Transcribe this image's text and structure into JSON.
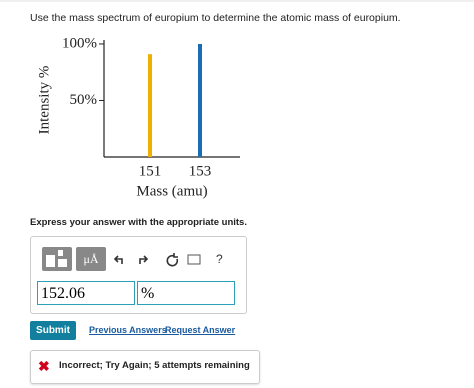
{
  "question": "Use the mass spectrum of europium to determine the atomic mass of europium.",
  "chart_data": {
    "type": "bar",
    "x": [
      151,
      153
    ],
    "values": [
      91,
      100
    ],
    "colors": [
      "#f0b000",
      "#1a6db5"
    ],
    "xlabel": "Mass (amu)",
    "ylabel": "Intensity %",
    "xlim": [
      149.16,
      154.6
    ],
    "xticks": [
      151,
      153
    ],
    "ylim": [
      0,
      103.5
    ],
    "yticks": [
      {
        "value": 50,
        "label": "50%"
      },
      {
        "value": 100,
        "label": "100%"
      }
    ]
  },
  "instruction": "Express your answer with the appropriate units.",
  "toolbar": {
    "units": "μÅ",
    "help": "?"
  },
  "answer": {
    "value": 152.06,
    "unit": "%"
  },
  "buttons": {
    "submit": "Submit",
    "previous_answers": "Previous Answers",
    "request_answer": "Request Answer"
  },
  "feedback": "Incorrect; Try Again; 5 attempts remaining"
}
